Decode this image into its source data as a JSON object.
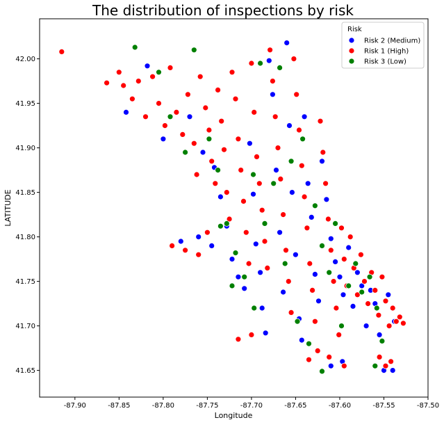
{
  "chart_data": {
    "type": "scatter",
    "title": "The distribution of inspections by risk",
    "xlabel": "Longitude",
    "ylabel": "LATITUDE",
    "xlim": [
      -87.94,
      -87.5
    ],
    "ylim": [
      41.62,
      42.045
    ],
    "xticks": [
      -87.9,
      -87.85,
      -87.8,
      -87.75,
      -87.7,
      -87.65,
      -87.6,
      -87.55,
      -87.5
    ],
    "xtick_labels": [
      "-87.90",
      "-87.85",
      "-87.80",
      "-87.75",
      "-87.70",
      "-87.65",
      "-87.60",
      "-87.55",
      "-87.50"
    ],
    "yticks": [
      41.65,
      41.7,
      41.75,
      41.8,
      41.85,
      41.9,
      41.95,
      42.0
    ],
    "ytick_labels": [
      "41.65",
      "41.70",
      "41.75",
      "41.80",
      "41.85",
      "41.90",
      "41.95",
      "42.00"
    ],
    "grid": false,
    "legend": {
      "title": "Risk",
      "placement": "top-right",
      "entries": [
        "Risk 2 (Medium)",
        "Risk 1 (High)",
        "Risk 3 (Low)"
      ]
    },
    "series": [
      {
        "name": "Risk 2 (Medium)",
        "color": "#0000ff",
        "points": [
          [
            -87.842,
            41.94
          ],
          [
            -87.818,
            41.992
          ],
          [
            -87.8,
            41.91
          ],
          [
            -87.77,
            41.935
          ],
          [
            -87.755,
            41.895
          ],
          [
            -87.742,
            41.878
          ],
          [
            -87.735,
            41.845
          ],
          [
            -87.728,
            41.812
          ],
          [
            -87.722,
            41.775
          ],
          [
            -87.715,
            41.755
          ],
          [
            -87.708,
            41.742
          ],
          [
            -87.702,
            41.905
          ],
          [
            -87.698,
            41.848
          ],
          [
            -87.695,
            41.792
          ],
          [
            -87.69,
            41.76
          ],
          [
            -87.688,
            41.72
          ],
          [
            -87.684,
            41.692
          ],
          [
            -87.68,
            41.998
          ],
          [
            -87.676,
            41.96
          ],
          [
            -87.672,
            41.875
          ],
          [
            -87.668,
            41.805
          ],
          [
            -87.664,
            41.738
          ],
          [
            -87.66,
            42.018
          ],
          [
            -87.657,
            41.925
          ],
          [
            -87.654,
            41.85
          ],
          [
            -87.65,
            41.78
          ],
          [
            -87.646,
            41.708
          ],
          [
            -87.643,
            41.684
          ],
          [
            -87.64,
            41.935
          ],
          [
            -87.636,
            41.86
          ],
          [
            -87.632,
            41.822
          ],
          [
            -87.628,
            41.758
          ],
          [
            -87.624,
            41.728
          ],
          [
            -87.62,
            41.885
          ],
          [
            -87.615,
            41.842
          ],
          [
            -87.61,
            41.798
          ],
          [
            -87.605,
            41.772
          ],
          [
            -87.6,
            41.755
          ],
          [
            -87.596,
            41.735
          ],
          [
            -87.59,
            41.788
          ],
          [
            -87.585,
            41.722
          ],
          [
            -87.58,
            41.76
          ],
          [
            -87.575,
            41.745
          ],
          [
            -87.57,
            41.7
          ],
          [
            -87.565,
            41.74
          ],
          [
            -87.56,
            41.725
          ],
          [
            -87.555,
            41.69
          ],
          [
            -87.55,
            41.65
          ],
          [
            -87.545,
            41.735
          ],
          [
            -87.54,
            41.65
          ],
          [
            -87.538,
            41.705
          ],
          [
            -87.61,
            41.655
          ],
          [
            -87.597,
            41.66
          ],
          [
            -87.78,
            41.795
          ],
          [
            -87.76,
            41.8
          ],
          [
            -87.745,
            41.79
          ]
        ]
      },
      {
        "name": "Risk 1 (High)",
        "color": "#ff0000",
        "points": [
          [
            -87.915,
            42.008
          ],
          [
            -87.864,
            41.973
          ],
          [
            -87.85,
            41.985
          ],
          [
            -87.845,
            41.97
          ],
          [
            -87.835,
            41.955
          ],
          [
            -87.828,
            41.975
          ],
          [
            -87.82,
            41.935
          ],
          [
            -87.812,
            41.98
          ],
          [
            -87.805,
            41.95
          ],
          [
            -87.798,
            41.925
          ],
          [
            -87.792,
            41.99
          ],
          [
            -87.785,
            41.94
          ],
          [
            -87.778,
            41.915
          ],
          [
            -87.772,
            41.96
          ],
          [
            -87.765,
            41.905
          ],
          [
            -87.762,
            41.87
          ],
          [
            -87.758,
            41.98
          ],
          [
            -87.752,
            41.945
          ],
          [
            -87.748,
            41.92
          ],
          [
            -87.745,
            41.885
          ],
          [
            -87.741,
            41.86
          ],
          [
            -87.738,
            41.965
          ],
          [
            -87.734,
            41.93
          ],
          [
            -87.731,
            41.898
          ],
          [
            -87.728,
            41.85
          ],
          [
            -87.725,
            41.82
          ],
          [
            -87.722,
            41.985
          ],
          [
            -87.718,
            41.955
          ],
          [
            -87.715,
            41.91
          ],
          [
            -87.712,
            41.875
          ],
          [
            -87.709,
            41.84
          ],
          [
            -87.706,
            41.805
          ],
          [
            -87.703,
            41.77
          ],
          [
            -87.7,
            41.995
          ],
          [
            -87.697,
            41.94
          ],
          [
            -87.694,
            41.89
          ],
          [
            -87.691,
            41.86
          ],
          [
            -87.688,
            41.83
          ],
          [
            -87.685,
            41.795
          ],
          [
            -87.682,
            41.765
          ],
          [
            -87.679,
            42.01
          ],
          [
            -87.676,
            41.975
          ],
          [
            -87.673,
            41.935
          ],
          [
            -87.67,
            41.9
          ],
          [
            -87.667,
            41.865
          ],
          [
            -87.664,
            41.825
          ],
          [
            -87.661,
            41.785
          ],
          [
            -87.658,
            41.75
          ],
          [
            -87.655,
            41.715
          ],
          [
            -87.652,
            42.0
          ],
          [
            -87.649,
            41.96
          ],
          [
            -87.646,
            41.92
          ],
          [
            -87.643,
            41.88
          ],
          [
            -87.64,
            41.845
          ],
          [
            -87.637,
            41.81
          ],
          [
            -87.634,
            41.77
          ],
          [
            -87.631,
            41.74
          ],
          [
            -87.628,
            41.705
          ],
          [
            -87.625,
            41.672
          ],
          [
            -87.622,
            41.93
          ],
          [
            -87.619,
            41.895
          ],
          [
            -87.616,
            41.86
          ],
          [
            -87.613,
            41.82
          ],
          [
            -87.61,
            41.785
          ],
          [
            -87.607,
            41.75
          ],
          [
            -87.604,
            41.72
          ],
          [
            -87.601,
            41.69
          ],
          [
            -87.598,
            41.81
          ],
          [
            -87.595,
            41.775
          ],
          [
            -87.592,
            41.745
          ],
          [
            -87.588,
            41.8
          ],
          [
            -87.584,
            41.765
          ],
          [
            -87.58,
            41.735
          ],
          [
            -87.576,
            41.78
          ],
          [
            -87.572,
            41.75
          ],
          [
            -87.568,
            41.725
          ],
          [
            -87.564,
            41.76
          ],
          [
            -87.56,
            41.74
          ],
          [
            -87.556,
            41.712
          ],
          [
            -87.552,
            41.755
          ],
          [
            -87.548,
            41.728
          ],
          [
            -87.544,
            41.7
          ],
          [
            -87.54,
            41.72
          ],
          [
            -87.536,
            41.705
          ],
          [
            -87.532,
            41.71
          ],
          [
            -87.528,
            41.703
          ],
          [
            -87.555,
            41.665
          ],
          [
            -87.548,
            41.655
          ],
          [
            -87.542,
            41.66
          ],
          [
            -87.595,
            41.655
          ],
          [
            -87.612,
            41.665
          ],
          [
            -87.635,
            41.662
          ],
          [
            -87.7,
            41.69
          ],
          [
            -87.715,
            41.685
          ],
          [
            -87.79,
            41.79
          ],
          [
            -87.775,
            41.785
          ],
          [
            -87.76,
            41.78
          ],
          [
            -87.75,
            41.805
          ]
        ]
      },
      {
        "name": "Risk 3 (Low)",
        "color": "#008000",
        "points": [
          [
            -87.832,
            42.013
          ],
          [
            -87.805,
            41.985
          ],
          [
            -87.792,
            41.935
          ],
          [
            -87.775,
            41.895
          ],
          [
            -87.765,
            42.01
          ],
          [
            -87.748,
            41.91
          ],
          [
            -87.738,
            41.875
          ],
          [
            -87.728,
            41.815
          ],
          [
            -87.718,
            41.782
          ],
          [
            -87.708,
            41.755
          ],
          [
            -87.698,
            41.87
          ],
          [
            -87.69,
            41.995
          ],
          [
            -87.685,
            41.815
          ],
          [
            -87.675,
            41.86
          ],
          [
            -87.668,
            41.99
          ],
          [
            -87.662,
            41.77
          ],
          [
            -87.655,
            41.885
          ],
          [
            -87.648,
            41.705
          ],
          [
            -87.642,
            41.91
          ],
          [
            -87.635,
            41.68
          ],
          [
            -87.628,
            41.835
          ],
          [
            -87.62,
            41.79
          ],
          [
            -87.612,
            41.76
          ],
          [
            -87.605,
            41.815
          ],
          [
            -87.598,
            41.7
          ],
          [
            -87.59,
            41.745
          ],
          [
            -87.582,
            41.77
          ],
          [
            -87.575,
            41.738
          ],
          [
            -87.566,
            41.755
          ],
          [
            -87.558,
            41.72
          ],
          [
            -87.552,
            41.683
          ],
          [
            -87.56,
            41.655
          ],
          [
            -87.62,
            41.649
          ],
          [
            -87.735,
            41.812
          ],
          [
            -87.722,
            41.745
          ],
          [
            -87.697,
            41.72
          ]
        ]
      }
    ]
  }
}
